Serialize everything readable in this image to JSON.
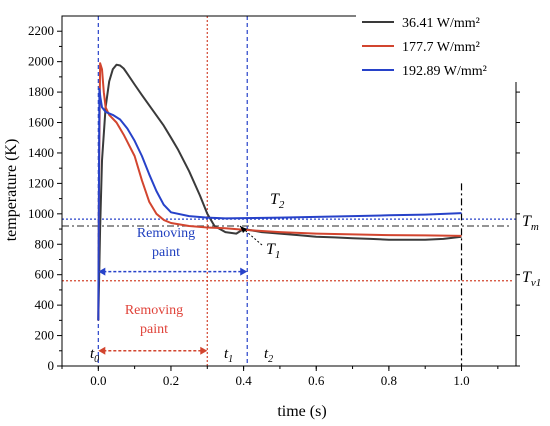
{
  "chart_data": {
    "type": "line",
    "xlabel": "time (s)",
    "ylabel": "temperature (K)",
    "xlim": [
      -0.1,
      1.15
    ],
    "ylim": [
      0,
      2300
    ],
    "xticks": [
      -0.2,
      0.0,
      0.2,
      0.4,
      0.6,
      0.8,
      1.0
    ],
    "xtick_labels": [
      "",
      "0.0",
      "0.2",
      "0.4",
      "0.6",
      "0.8",
      "1.0"
    ],
    "yticks": [
      0,
      200,
      400,
      600,
      800,
      1000,
      1200,
      1400,
      1600,
      1800,
      2000,
      2200
    ],
    "yticks_minor": [
      100,
      300,
      500,
      700,
      900,
      1100,
      1300,
      1500,
      1700,
      1900,
      2100
    ],
    "legend_position": "top-right",
    "series": [
      {
        "name": "36.41 W/mm²",
        "color": "#3a3a3a",
        "x": [
          0.0,
          0.005,
          0.01,
          0.02,
          0.03,
          0.04,
          0.05,
          0.06,
          0.07,
          0.08,
          0.1,
          0.12,
          0.15,
          0.18,
          0.2,
          0.22,
          0.25,
          0.28,
          0.3,
          0.32,
          0.35,
          0.38,
          0.4,
          0.45,
          0.5,
          0.55,
          0.6,
          0.65,
          0.7,
          0.75,
          0.8,
          0.85,
          0.9,
          0.95,
          1.0
        ],
        "y": [
          300,
          900,
          1350,
          1700,
          1870,
          1950,
          1980,
          1975,
          1955,
          1920,
          1850,
          1780,
          1680,
          1580,
          1500,
          1420,
          1280,
          1120,
          1000,
          920,
          880,
          870,
          900,
          880,
          870,
          860,
          850,
          845,
          840,
          835,
          830,
          830,
          830,
          835,
          850
        ]
      },
      {
        "name": "177.7 W/mm²",
        "color": "#d2452f",
        "x": [
          0.0,
          0.002,
          0.005,
          0.01,
          0.015,
          0.02,
          0.03,
          0.05,
          0.07,
          0.1,
          0.12,
          0.14,
          0.16,
          0.18,
          0.2,
          0.25,
          0.3,
          0.35,
          0.4,
          0.5,
          0.6,
          0.7,
          0.8,
          0.9,
          1.0
        ],
        "y": [
          300,
          1200,
          1990,
          1950,
          1800,
          1700,
          1650,
          1600,
          1520,
          1380,
          1220,
          1080,
          1000,
          960,
          940,
          920,
          910,
          905,
          895,
          880,
          870,
          865,
          860,
          858,
          855
        ]
      },
      {
        "name": "192.89 W/mm²",
        "color": "#2742c9",
        "x": [
          0.0,
          0.003,
          0.006,
          0.01,
          0.02,
          0.04,
          0.06,
          0.08,
          0.1,
          0.12,
          0.14,
          0.16,
          0.18,
          0.2,
          0.25,
          0.3,
          0.35,
          0.4,
          0.5,
          0.6,
          0.7,
          0.8,
          0.9,
          1.0
        ],
        "y": [
          300,
          1820,
          1760,
          1700,
          1670,
          1650,
          1620,
          1560,
          1480,
          1380,
          1260,
          1150,
          1060,
          1010,
          985,
          975,
          970,
          972,
          975,
          980,
          985,
          990,
          995,
          1005
        ]
      }
    ],
    "vlines": [
      {
        "x": 0.0,
        "color": "#2742c9",
        "style": "dashed"
      },
      {
        "x": 0.3,
        "color": "#d2452f",
        "style": "dotted"
      },
      {
        "x": 0.41,
        "color": "#2742c9",
        "style": "dashed"
      },
      {
        "x": 1.0,
        "color": "#000000",
        "style": "dashdot"
      }
    ],
    "hlines": [
      {
        "y": 965,
        "color": "#2742c9",
        "style": "dotted"
      },
      {
        "y": 920,
        "color": "#555555",
        "style": "dashdot",
        "label": "T_m"
      },
      {
        "y": 560,
        "color": "#d2452f",
        "style": "dotted",
        "label": "T_v1"
      }
    ],
    "annotations": {
      "T2": {
        "base": "T",
        "sub": "2"
      },
      "T1": {
        "base": "T",
        "sub": "1"
      },
      "Tm": {
        "base": "T",
        "sub": "m"
      },
      "Tv1": {
        "base": "T",
        "sub": "v1"
      },
      "t0": {
        "base": "t",
        "sub": "0"
      },
      "t1": {
        "base": "t",
        "sub": "1"
      },
      "t2": {
        "base": "t",
        "sub": "2"
      },
      "removing_blue": [
        "Removing",
        "paint"
      ],
      "removing_red": [
        "Removing",
        "paint"
      ]
    },
    "colors": {
      "blue": "#2742c9",
      "red": "#d2452f",
      "gray": "#3a3a3a"
    }
  }
}
